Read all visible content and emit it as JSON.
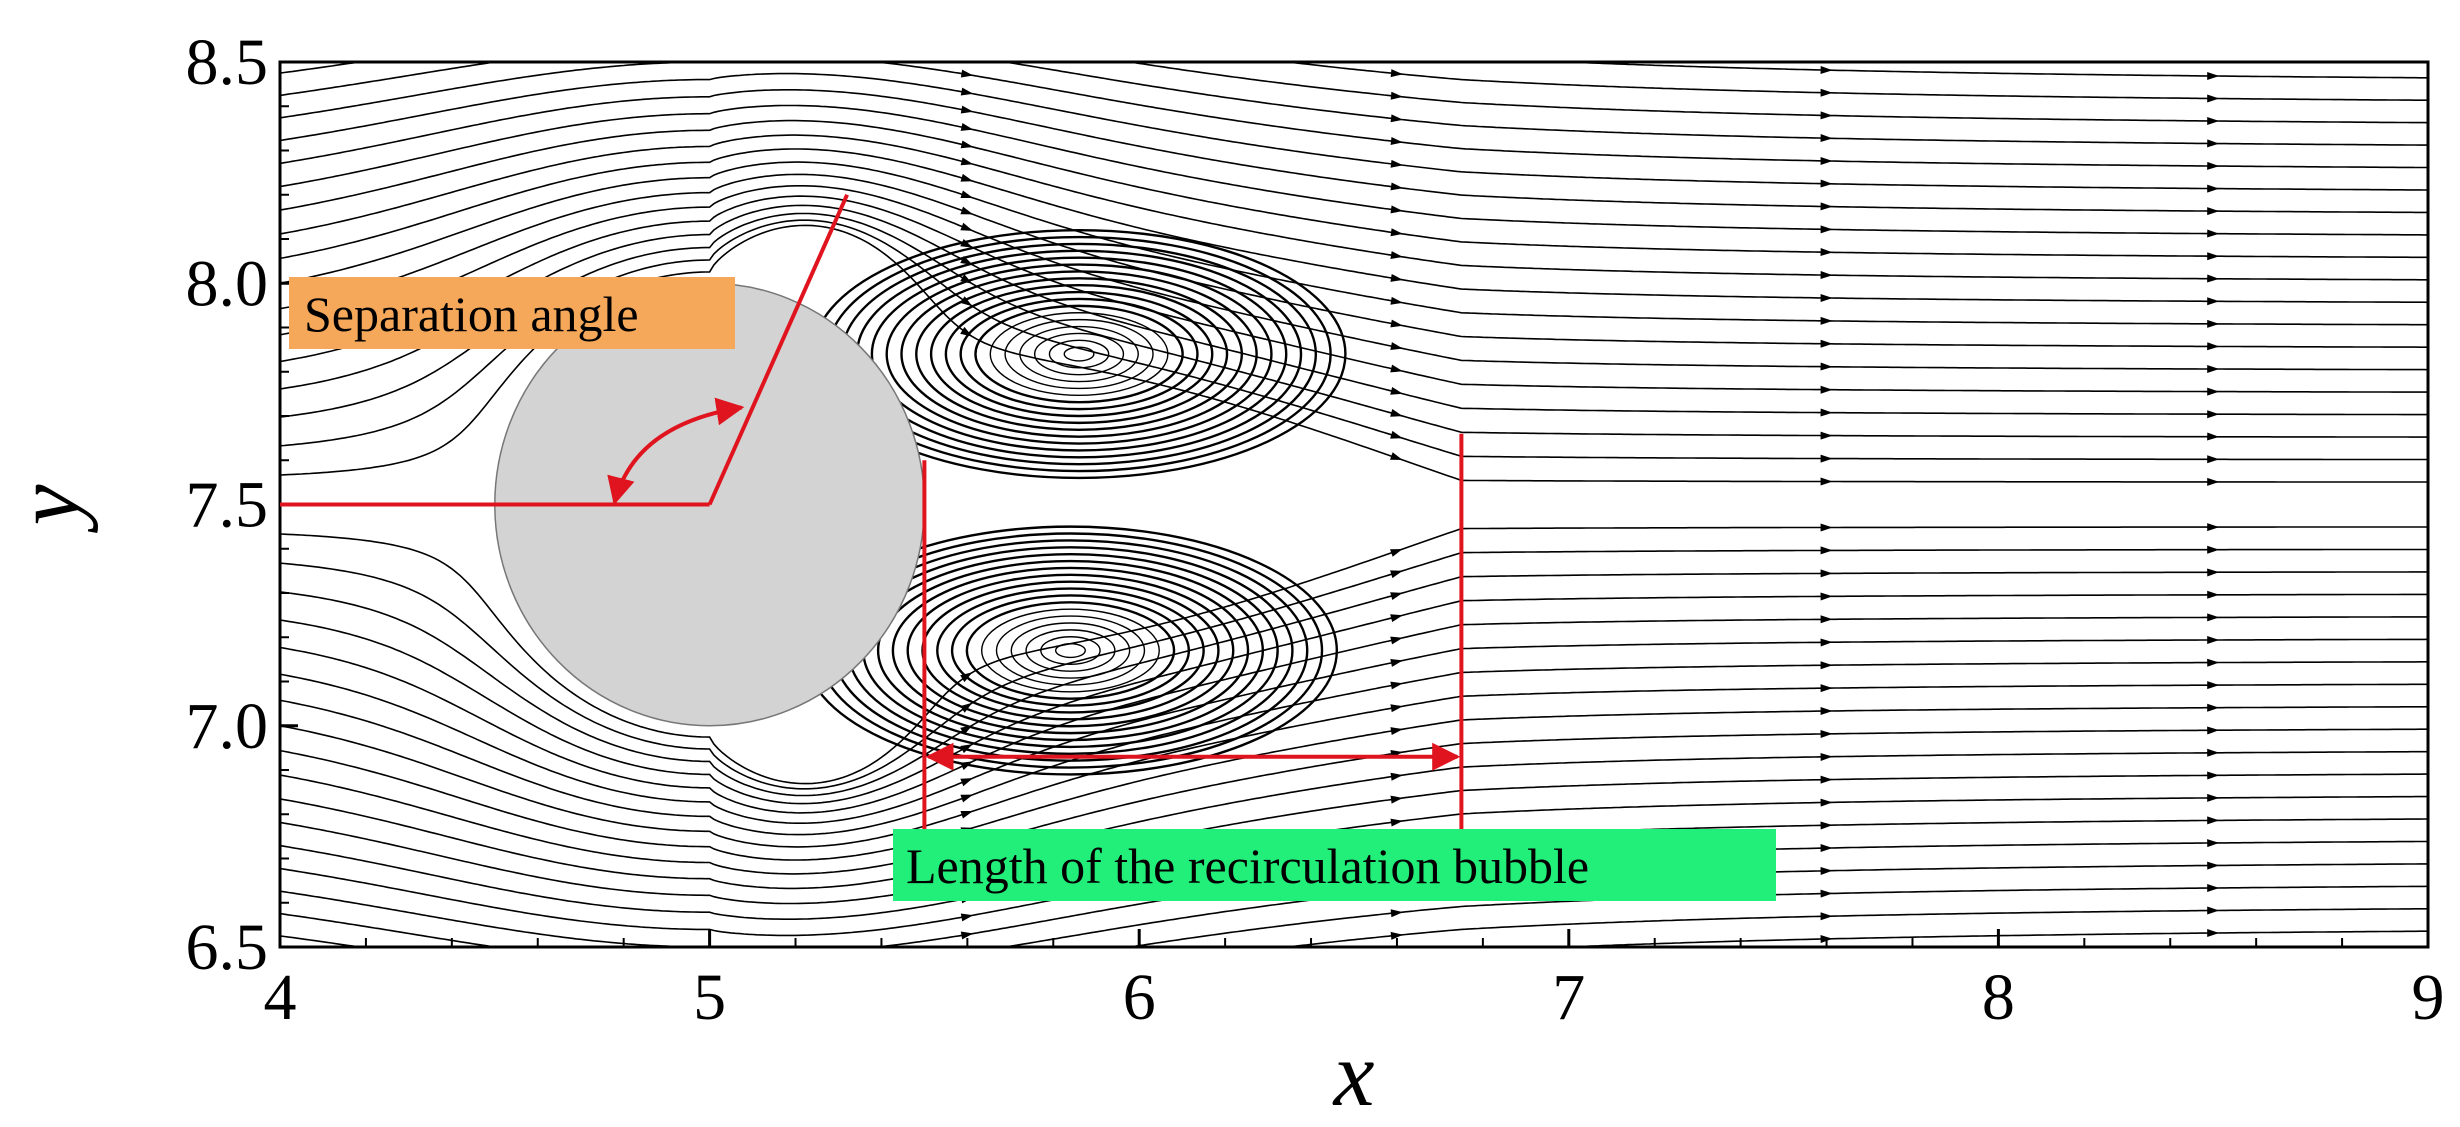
{
  "chart_data": {
    "type": "streamline",
    "title": "",
    "xlabel": "x",
    "ylabel": "y",
    "xlim": [
      4,
      9
    ],
    "ylim": [
      6.5,
      8.5
    ],
    "xticks": [
      4,
      5,
      6,
      7,
      8,
      9
    ],
    "xtick_labels": [
      "4",
      "5",
      "6",
      "7",
      "8",
      "9"
    ],
    "yticks": [
      6.5,
      7.0,
      7.5,
      8.0,
      8.5
    ],
    "ytick_labels": [
      "6.5",
      "7.0",
      "7.5",
      "8.0",
      "8.5"
    ],
    "grid": false,
    "cylinder": {
      "center": [
        5.0,
        7.5
      ],
      "radius": 0.5,
      "fill": "#d3d3d3"
    },
    "recirculation": {
      "upper_vortex_center": [
        5.86,
        7.84
      ],
      "lower_vortex_center": [
        5.84,
        7.17
      ],
      "bubble_start_x": 5.5,
      "bubble_end_x": 6.75
    },
    "separation_ray_end": [
      5.32,
      8.2
    ],
    "annotations": [
      {
        "id": "separation-angle",
        "text": "Separation angle",
        "background": "#f5a85a"
      },
      {
        "id": "recirculation-length",
        "text": "Length of the recirculation bubble",
        "background": "#22ee7a"
      }
    ],
    "colors": {
      "streamline": "#000000",
      "annotation": "#e0141e"
    }
  }
}
